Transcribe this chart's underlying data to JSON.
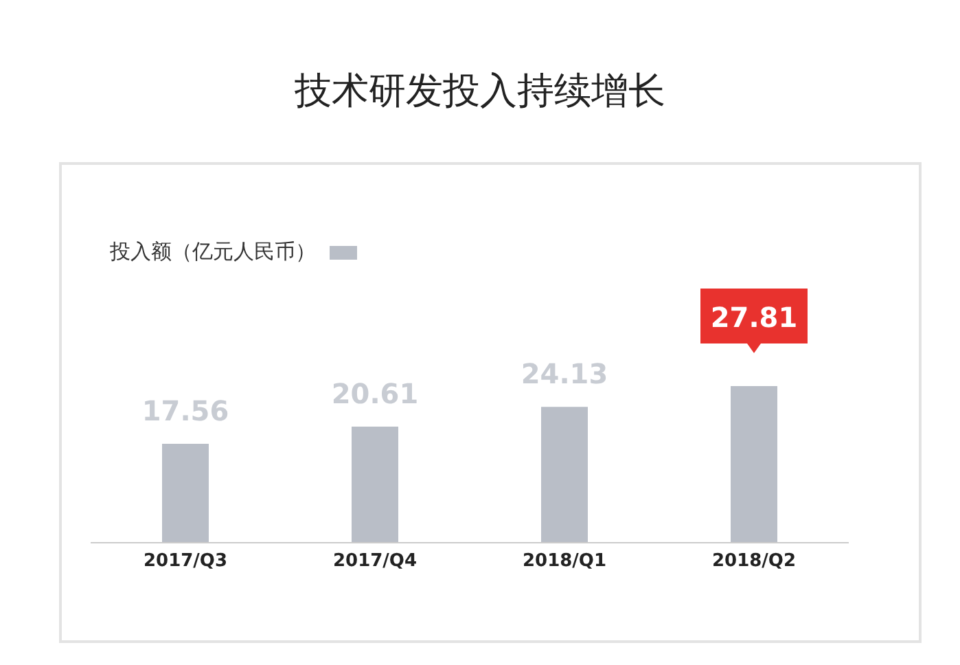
{
  "chart_data": {
    "type": "bar",
    "title": "技术研发投入持续增长",
    "categories": [
      "2017/Q3",
      "2017/Q4",
      "2018/Q1",
      "2018/Q2"
    ],
    "series": [
      {
        "name": "投入额（亿元人民币）",
        "color": "#b9bec7",
        "values": [
          17.56,
          20.61,
          24.13,
          27.81
        ]
      }
    ],
    "data_labels": true,
    "legend": "top left",
    "grid": false
  }
}
